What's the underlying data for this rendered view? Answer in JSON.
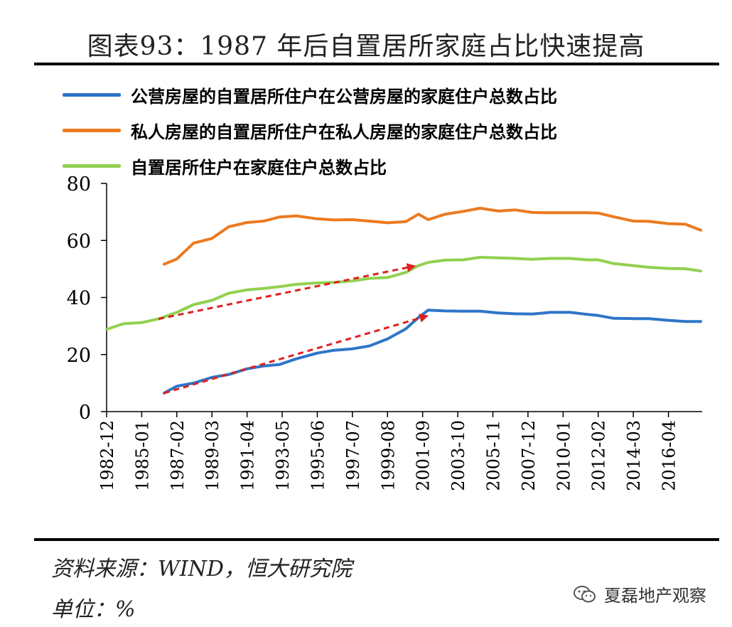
{
  "header": {
    "title": "图表93：1987 年后自置居所家庭占比快速提高"
  },
  "legend": [
    {
      "label": "公营房屋的自置居所住户在公营房屋的家庭住户总数占比",
      "color": "#2E75C8"
    },
    {
      "label": "私人房屋的自置居所住户在私人房屋的家庭住户总数占比",
      "color": "#EC7A1F"
    },
    {
      "label": "自置居所住户在家庭住户总数占比",
      "color": "#92D050"
    }
  ],
  "chart_data": {
    "type": "line",
    "title": "",
    "xlabel": "",
    "ylabel": "",
    "ylim": [
      0,
      80
    ],
    "yticks": [
      0,
      20,
      40,
      60,
      80
    ],
    "xticks": [
      "1982-12",
      "1985-01",
      "1987-02",
      "1989-03",
      "1991-04",
      "1993-05",
      "1995-06",
      "1997-07",
      "1999-08",
      "2001-09",
      "2003-10",
      "2005-11",
      "2007-12",
      "2010-01",
      "2012-02",
      "2014-03",
      "2016-04"
    ],
    "grid": false,
    "legend_position": "top-left",
    "series": [
      {
        "name": "公营房屋的自置居所住户在公营房屋的家庭住户总数占比",
        "color": "#2E75C8",
        "points": [
          [
            "1986-05",
            6.5
          ],
          [
            "1987-02",
            8.9
          ],
          [
            "1988-02",
            10.0
          ],
          [
            "1989-03",
            12.0
          ],
          [
            "1990-03",
            13.0
          ],
          [
            "1991-04",
            15.0
          ],
          [
            "1992-04",
            16.0
          ],
          [
            "1993-03",
            16.5
          ],
          [
            "1994-03",
            18.5
          ],
          [
            "1995-06",
            20.5
          ],
          [
            "1996-06",
            21.5
          ],
          [
            "1997-07",
            22.0
          ],
          [
            "1998-07",
            23.0
          ],
          [
            "1999-08",
            25.5
          ],
          [
            "2000-09",
            29.0
          ],
          [
            "2001-06",
            33.0
          ],
          [
            "2002-01",
            35.6
          ],
          [
            "2003-01",
            35.3
          ],
          [
            "2004-02",
            35.2
          ],
          [
            "2005-02",
            35.2
          ],
          [
            "2006-03",
            34.6
          ],
          [
            "2007-03",
            34.3
          ],
          [
            "2008-03",
            34.2
          ],
          [
            "2009-04",
            34.8
          ],
          [
            "2010-06",
            34.8
          ],
          [
            "2011-06",
            34.1
          ],
          [
            "2012-02",
            33.7
          ],
          [
            "2013-01",
            32.7
          ],
          [
            "2014-03",
            32.6
          ],
          [
            "2015-02",
            32.6
          ],
          [
            "2016-04",
            32.0
          ],
          [
            "2017-04",
            31.6
          ],
          [
            "2018-03",
            31.6
          ]
        ]
      },
      {
        "name": "私人房屋的自置居所住户在私人房屋的家庭住户总数占比",
        "color": "#EC7A1F",
        "points": [
          [
            "1986-05",
            51.7
          ],
          [
            "1987-02",
            53.5
          ],
          [
            "1988-02",
            59.1
          ],
          [
            "1989-03",
            60.7
          ],
          [
            "1990-03",
            64.8
          ],
          [
            "1991-04",
            66.3
          ],
          [
            "1992-04",
            66.8
          ],
          [
            "1993-03",
            68.2
          ],
          [
            "1994-03",
            68.6
          ],
          [
            "1995-06",
            67.6
          ],
          [
            "1996-06",
            67.2
          ],
          [
            "1997-07",
            67.3
          ],
          [
            "1998-07",
            66.8
          ],
          [
            "1999-08",
            66.2
          ],
          [
            "2000-09",
            66.6
          ],
          [
            "2001-06",
            69.2
          ],
          [
            "2002-01",
            67.3
          ],
          [
            "2003-01",
            69.2
          ],
          [
            "2004-02",
            70.2
          ],
          [
            "2005-02",
            71.3
          ],
          [
            "2006-03",
            70.3
          ],
          [
            "2007-03",
            70.7
          ],
          [
            "2008-03",
            69.8
          ],
          [
            "2009-04",
            69.7
          ],
          [
            "2010-06",
            69.7
          ],
          [
            "2011-06",
            69.7
          ],
          [
            "2012-02",
            69.6
          ],
          [
            "2013-01",
            68.3
          ],
          [
            "2014-03",
            66.8
          ],
          [
            "2015-02",
            66.7
          ],
          [
            "2016-04",
            65.9
          ],
          [
            "2017-04",
            65.7
          ],
          [
            "2018-03",
            63.6
          ]
        ]
      },
      {
        "name": "自置居所住户在家庭住户总数占比",
        "color": "#92D050",
        "points": [
          [
            "1982-12",
            28.8
          ],
          [
            "1983-12",
            30.8
          ],
          [
            "1985-01",
            31.2
          ],
          [
            "1986-01",
            32.5
          ],
          [
            "1987-02",
            34.8
          ],
          [
            "1988-02",
            37.5
          ],
          [
            "1989-03",
            39.0
          ],
          [
            "1990-03",
            41.5
          ],
          [
            "1991-04",
            42.7
          ],
          [
            "1992-04",
            43.2
          ],
          [
            "1993-03",
            43.8
          ],
          [
            "1994-03",
            44.6
          ],
          [
            "1995-06",
            45.1
          ],
          [
            "1996-06",
            45.3
          ],
          [
            "1997-07",
            45.8
          ],
          [
            "1998-07",
            46.7
          ],
          [
            "1999-08",
            47.0
          ],
          [
            "2000-09",
            48.8
          ],
          [
            "2001-06",
            51.2
          ],
          [
            "2002-01",
            52.3
          ],
          [
            "2003-01",
            53.1
          ],
          [
            "2004-02",
            53.2
          ],
          [
            "2005-02",
            54.1
          ],
          [
            "2006-03",
            53.9
          ],
          [
            "2007-03",
            53.7
          ],
          [
            "2008-03",
            53.4
          ],
          [
            "2009-04",
            53.7
          ],
          [
            "2010-06",
            53.7
          ],
          [
            "2011-06",
            53.2
          ],
          [
            "2012-02",
            53.2
          ],
          [
            "2013-01",
            51.9
          ],
          [
            "2014-03",
            51.2
          ],
          [
            "2015-02",
            50.6
          ],
          [
            "2016-04",
            50.2
          ],
          [
            "2017-04",
            50.1
          ],
          [
            "2018-03",
            49.3
          ]
        ]
      }
    ],
    "annotations": [
      {
        "type": "arrow",
        "style": "dashed",
        "color": "#E02020",
        "from": [
          "1986-05",
          6.5
        ],
        "to": [
          "2001-12",
          33.5
        ]
      },
      {
        "type": "arrow",
        "style": "dashed",
        "color": "#E02020",
        "from": [
          "1986-01",
          32.5
        ],
        "to": [
          "2001-03",
          51.0
        ]
      }
    ]
  },
  "footer": {
    "source": "资料来源：WIND，恒大研究院",
    "unit": "单位：%",
    "watermark": "夏磊地产观察"
  }
}
